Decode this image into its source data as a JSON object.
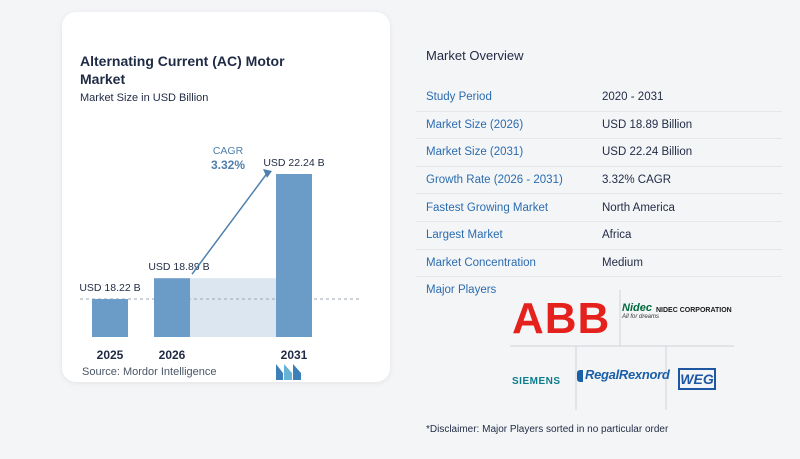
{
  "chart_data": {
    "type": "bar",
    "title": "Alternating Current (AC) Motor Market",
    "subtitle": "Market Size in USD Billion",
    "categories": [
      "2025",
      "2026",
      "2031"
    ],
    "values": [
      18.22,
      18.89,
      22.24
    ],
    "data_labels": [
      "USD 18.22 B",
      "USD 18.89 B",
      "USD 22.24 B"
    ],
    "annotation": {
      "label": "CAGR",
      "value": "3.32%"
    },
    "colors": {
      "bar": "#6a9cc7",
      "bar_dark": "#4f80ad",
      "band": "#dbe6f1",
      "arrow": "#4f80ad",
      "cagr": "#4f80ad"
    }
  },
  "source": "Source:  Mordor Intelligence",
  "overview": {
    "title": "Market Overview",
    "rows": [
      {
        "key": "Study Period",
        "value": "2020 - 2031"
      },
      {
        "key": "Market Size (2026)",
        "value": "USD 18.89 Billion"
      },
      {
        "key": "Market Size (2031)",
        "value": "USD 22.24 Billion"
      },
      {
        "key": "Growth Rate (2026 - 2031)",
        "value": "3.32% CAGR"
      },
      {
        "key": "Fastest Growing Market",
        "value": "North America"
      },
      {
        "key": "Largest Market",
        "value": "Africa"
      },
      {
        "key": "Market Concentration",
        "value": "Medium"
      }
    ]
  },
  "players": {
    "label": "Major Players",
    "logos": {
      "abb": "ABB",
      "nidec_mark": "Nidec",
      "nidec_tag": "All for dreams",
      "nidec_name": "NIDEC CORPORATION",
      "siemens": "SIEMENS",
      "regal": "RegalRexnord",
      "weg": "WEG"
    },
    "colors": {
      "abb": "#e4211c",
      "nidec": "#006b3c",
      "siemens": "#0b7c8c",
      "regal": "#1a5fa8",
      "weg": "#1d56a3"
    }
  },
  "disclaimer": "*Disclaimer: Major Players sorted in no particular order"
}
